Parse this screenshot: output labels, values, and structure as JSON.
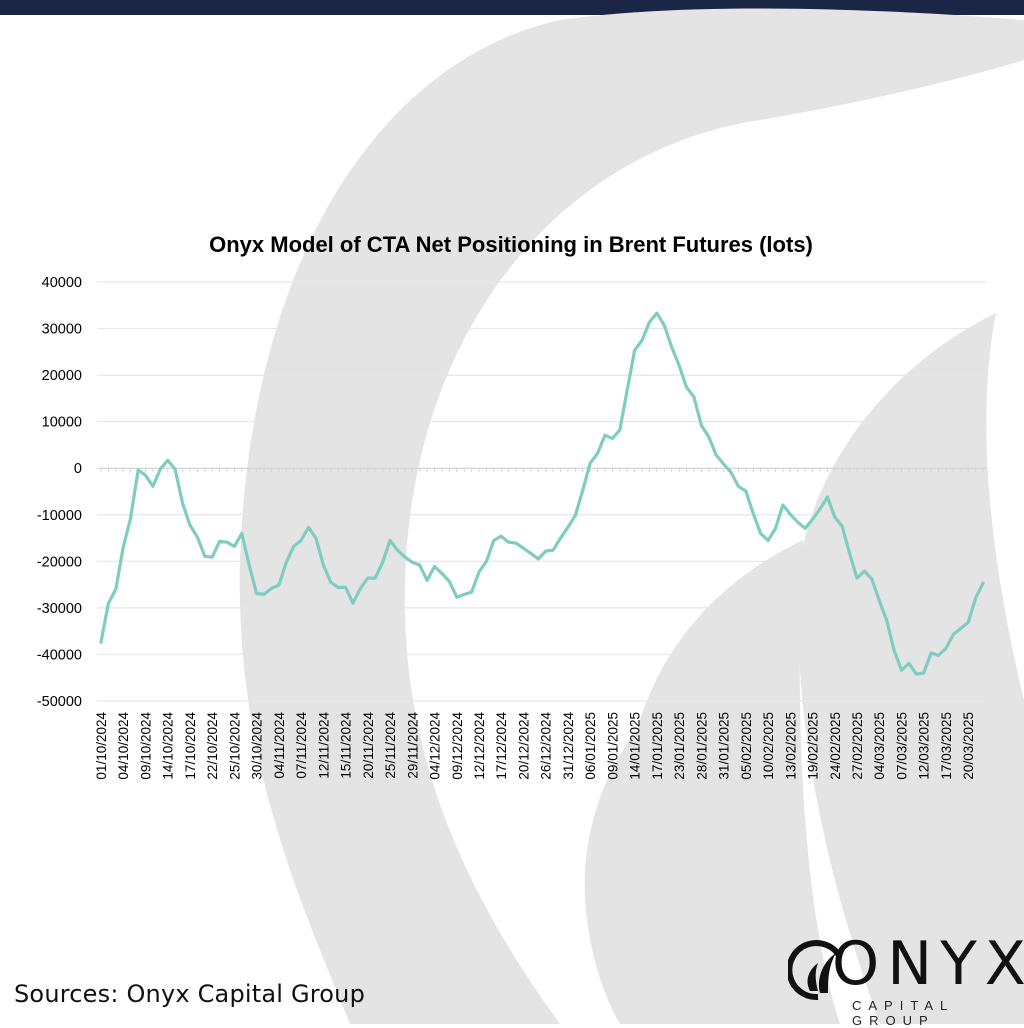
{
  "chart_data": {
    "type": "line",
    "title": "Onyx Model of CTA Net Positioning in Brent Futures (lots)",
    "xlabel": "",
    "ylabel": "",
    "ylim": [
      -50000,
      40000
    ],
    "yticks": [
      40000,
      30000,
      20000,
      10000,
      0,
      -10000,
      -20000,
      -30000,
      -40000,
      -50000
    ],
    "grid": true,
    "legend": "none",
    "line_color": "#7fcdbe",
    "x_tick_every": 3,
    "x_tick_labels": [
      "01/10/2024",
      "04/10/2024",
      "09/10/2024",
      "14/10/2024",
      "17/10/2024",
      "22/10/2024",
      "25/10/2024",
      "30/10/2024",
      "04/11/2024",
      "07/11/2024",
      "12/11/2024",
      "15/11/2024",
      "20/11/2024",
      "25/11/2024",
      "29/11/2024",
      "04/12/2024",
      "09/12/2024",
      "12/12/2024",
      "17/12/2024",
      "20/12/2024",
      "26/12/2024",
      "31/12/2024",
      "06/01/2025",
      "09/01/2025",
      "14/01/2025",
      "17/01/2025",
      "23/01/2025",
      "28/01/2025",
      "31/01/2025",
      "05/02/2025",
      "10/02/2025",
      "13/02/2025",
      "19/02/2025",
      "24/02/2025",
      "27/02/2025",
      "04/03/2025",
      "07/03/2025",
      "12/03/2025",
      "17/03/2025",
      "20/03/2025"
    ],
    "series": [
      {
        "name": "CTA Net Positioning",
        "values": [
          -37400,
          -29000,
          -26000,
          -17000,
          -10700,
          -400,
          -1500,
          -3900,
          -200,
          1700,
          -200,
          -7500,
          -12200,
          -14800,
          -18900,
          -19100,
          -15700,
          -15900,
          -16800,
          -14000,
          -20800,
          -26900,
          -27100,
          -25800,
          -25100,
          -20200,
          -16800,
          -15500,
          -12700,
          -15000,
          -20800,
          -24500,
          -25600,
          -25600,
          -29000,
          -25800,
          -23600,
          -23600,
          -20200,
          -15500,
          -17600,
          -19100,
          -20200,
          -20800,
          -24100,
          -21100,
          -22600,
          -24300,
          -27700,
          -27100,
          -26600,
          -22300,
          -20000,
          -15500,
          -14600,
          -15900,
          -16100,
          -17200,
          -18300,
          -19500,
          -17800,
          -17600,
          -15000,
          -12700,
          -10100,
          -4700,
          1100,
          3200,
          7100,
          6400,
          8200,
          16800,
          25300,
          27500,
          31400,
          33300,
          30700,
          26000,
          22100,
          17400,
          15300,
          9200,
          6700,
          2800,
          900,
          -900,
          -3900,
          -4900,
          -9700,
          -14000,
          -15500,
          -12900,
          -7900,
          -9900,
          -11600,
          -12900,
          -11000,
          -8800,
          -6200,
          -10500,
          -12500,
          -18300,
          -23600,
          -22100,
          -23800,
          -28400,
          -32600,
          -39100,
          -43400,
          -41900,
          -44200,
          -44000,
          -39700,
          -40200,
          -38700,
          -35700,
          -34400,
          -33100,
          -27900,
          -24700
        ]
      }
    ]
  },
  "footer": {
    "sources": "Sources:  Onyx Capital Group"
  },
  "logo": {
    "name": "ONYX",
    "sub": "CAPITAL GROUP"
  },
  "colors": {
    "topbar": "#1b2545",
    "watermark": "#e4e4e4",
    "grid": "#e6e6e6"
  }
}
